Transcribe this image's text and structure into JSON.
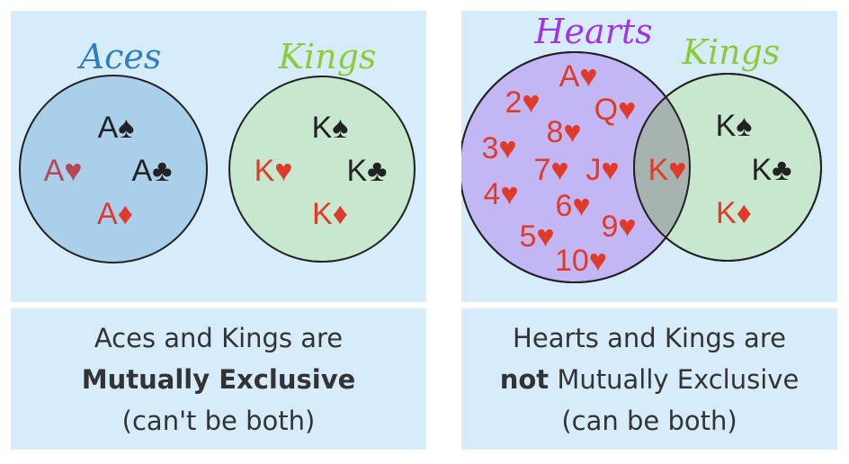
{
  "left_diagram": {
    "sets": [
      {
        "title": "Aces",
        "title_color": "#2f7fbf",
        "fill": "#a9cfea",
        "cards": [
          {
            "label": "A♠",
            "color": "#222222"
          },
          {
            "label": "A♥",
            "color": "#b4485a"
          },
          {
            "label": "A♣",
            "color": "#222222"
          },
          {
            "label": "A♦",
            "color": "#e03a2a"
          }
        ]
      },
      {
        "title": "Kings",
        "title_color": "#8ccc3a",
        "fill": "#c7e8cf",
        "cards": [
          {
            "label": "K♠",
            "color": "#222222"
          },
          {
            "label": "K♥",
            "color": "#e03a2a"
          },
          {
            "label": "K♣",
            "color": "#222222"
          },
          {
            "label": "K♦",
            "color": "#e03a2a"
          }
        ]
      }
    ],
    "caption": {
      "line1": "Aces and Kings are",
      "line2_bold": "Mutually Exclusive",
      "line3": "(can't be both)"
    }
  },
  "right_diagram": {
    "sets": [
      {
        "title": "Hearts",
        "title_color": "#a233e6",
        "fill": "#c3b6f4",
        "cards": [
          {
            "label": "A♥",
            "color": "#e03a2a"
          },
          {
            "label": "2♥",
            "color": "#e03a2a"
          },
          {
            "label": "Q♥",
            "color": "#e03a2a"
          },
          {
            "label": "8♥",
            "color": "#e03a2a"
          },
          {
            "label": "3♥",
            "color": "#e03a2a"
          },
          {
            "label": "7♥",
            "color": "#e03a2a"
          },
          {
            "label": "J♥",
            "color": "#e03a2a"
          },
          {
            "label": "4♥",
            "color": "#e03a2a"
          },
          {
            "label": "6♥",
            "color": "#e03a2a"
          },
          {
            "label": "9♥",
            "color": "#e03a2a"
          },
          {
            "label": "5♥",
            "color": "#e03a2a"
          },
          {
            "label": "10♥",
            "color": "#e03a2a"
          }
        ]
      },
      {
        "title": "Kings",
        "title_color": "#8ccc3a",
        "fill": "#c7e8cf",
        "cards": [
          {
            "label": "K♠",
            "color": "#222222"
          },
          {
            "label": "K♣",
            "color": "#222222"
          },
          {
            "label": "K♦",
            "color": "#e03a2a"
          }
        ]
      }
    ],
    "intersection": [
      {
        "label": "K♥",
        "color": "#e03a2a"
      }
    ],
    "caption": {
      "line1": "Hearts and Kings are",
      "line2_bold": "not",
      "line2_rest": " Mutually Exclusive",
      "line3": "(can be both)"
    }
  }
}
